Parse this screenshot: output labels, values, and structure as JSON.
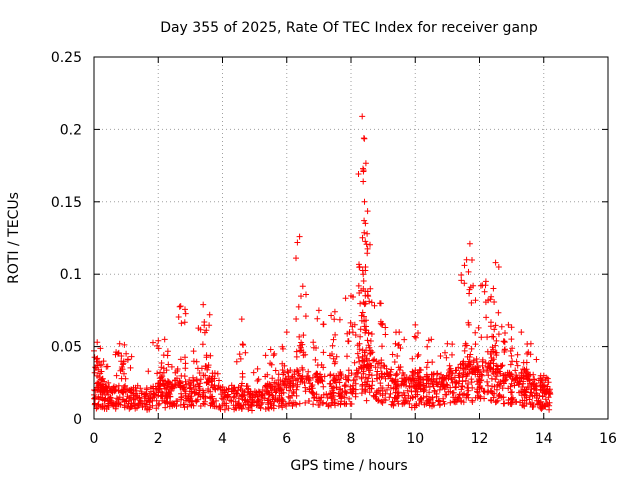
{
  "chart_data": {
    "type": "scatter",
    "title": "Day 355 of 2025, Rate Of TEC Index for receiver ganp",
    "xlabel": "GPS time / hours",
    "ylabel": "ROTI / TECUs",
    "xlim": [
      0,
      16
    ],
    "ylim": [
      0,
      0.25
    ],
    "xticks": [
      "0",
      "2",
      "4",
      "6",
      "8",
      "10",
      "12",
      "14",
      "16"
    ],
    "yticks": [
      "0",
      "0.05",
      "0.1",
      "0.15",
      "0.2",
      "0.25"
    ],
    "grid": true,
    "marker": "+",
    "color": "#ff0000",
    "series": [
      {
        "name": "ROTI",
        "x_range": [
          0.0,
          14.2
        ],
        "baseline": [
          [
            0.0,
            0.02
          ],
          [
            1.0,
            0.018
          ],
          [
            1.6,
            0.017
          ],
          [
            2.0,
            0.02
          ],
          [
            2.8,
            0.022
          ],
          [
            3.5,
            0.025
          ],
          [
            4.0,
            0.018
          ],
          [
            4.8,
            0.016
          ],
          [
            5.5,
            0.02
          ],
          [
            6.0,
            0.024
          ],
          [
            6.5,
            0.028
          ],
          [
            7.0,
            0.025
          ],
          [
            7.5,
            0.024
          ],
          [
            8.0,
            0.028
          ],
          [
            8.4,
            0.035
          ],
          [
            9.0,
            0.03
          ],
          [
            9.5,
            0.024
          ],
          [
            10.0,
            0.022
          ],
          [
            10.5,
            0.025
          ],
          [
            11.0,
            0.026
          ],
          [
            11.5,
            0.03
          ],
          [
            12.0,
            0.034
          ],
          [
            12.5,
            0.032
          ],
          [
            13.0,
            0.028
          ],
          [
            13.5,
            0.024
          ],
          [
            14.0,
            0.019
          ],
          [
            14.2,
            0.018
          ]
        ],
        "peaks": [
          {
            "x": 0.0,
            "y": 0.047
          },
          {
            "x": 0.1,
            "y": 0.053
          },
          {
            "x": 0.3,
            "y": 0.04
          },
          {
            "x": 0.8,
            "y": 0.052
          },
          {
            "x": 1.0,
            "y": 0.045
          },
          {
            "x": 2.0,
            "y": 0.054
          },
          {
            "x": 2.2,
            "y": 0.055
          },
          {
            "x": 2.7,
            "y": 0.078
          },
          {
            "x": 3.4,
            "y": 0.079
          },
          {
            "x": 3.6,
            "y": 0.072
          },
          {
            "x": 4.6,
            "y": 0.069
          },
          {
            "x": 5.5,
            "y": 0.048
          },
          {
            "x": 6.0,
            "y": 0.06
          },
          {
            "x": 6.4,
            "y": 0.126
          },
          {
            "x": 6.6,
            "y": 0.086
          },
          {
            "x": 7.0,
            "y": 0.075
          },
          {
            "x": 7.5,
            "y": 0.074
          },
          {
            "x": 8.0,
            "y": 0.085
          },
          {
            "x": 8.35,
            "y": 0.209
          },
          {
            "x": 8.4,
            "y": 0.194
          },
          {
            "x": 8.38,
            "y": 0.164
          },
          {
            "x": 8.42,
            "y": 0.15
          },
          {
            "x": 8.5,
            "y": 0.128
          },
          {
            "x": 8.45,
            "y": 0.105
          },
          {
            "x": 8.6,
            "y": 0.09
          },
          {
            "x": 8.9,
            "y": 0.08
          },
          {
            "x": 9.5,
            "y": 0.06
          },
          {
            "x": 10.0,
            "y": 0.065
          },
          {
            "x": 10.5,
            "y": 0.055
          },
          {
            "x": 11.0,
            "y": 0.052
          },
          {
            "x": 11.7,
            "y": 0.121
          },
          {
            "x": 11.6,
            "y": 0.11
          },
          {
            "x": 11.8,
            "y": 0.092
          },
          {
            "x": 12.2,
            "y": 0.095
          },
          {
            "x": 12.5,
            "y": 0.108
          },
          {
            "x": 12.6,
            "y": 0.105
          },
          {
            "x": 12.9,
            "y": 0.065
          },
          {
            "x": 13.3,
            "y": 0.06
          },
          {
            "x": 13.6,
            "y": 0.052
          },
          {
            "x": 14.0,
            "y": 0.03
          }
        ]
      }
    ]
  }
}
